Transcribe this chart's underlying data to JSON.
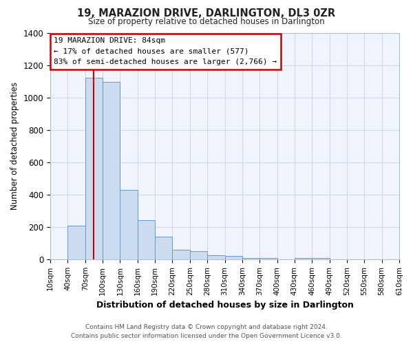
{
  "title": "19, MARAZION DRIVE, DARLINGTON, DL3 0ZR",
  "subtitle": "Size of property relative to detached houses in Darlington",
  "xlabel": "Distribution of detached houses by size in Darlington",
  "ylabel": "Number of detached properties",
  "bar_color": "#ccdcf0",
  "bar_edge_color": "#6699cc",
  "bg_color": "#ffffff",
  "plot_bg_color": "#f0f4fc",
  "annotation_box_color": "#ffffff",
  "annotation_box_edge": "#cc0000",
  "red_line_x": 84,
  "annotation_line1": "19 MARAZION DRIVE: 84sqm",
  "annotation_line2": "← 17% of detached houses are smaller (577)",
  "annotation_line3": "83% of semi-detached houses are larger (2,766) →",
  "footnote1": "Contains HM Land Registry data © Crown copyright and database right 2024.",
  "footnote2": "Contains public sector information licensed under the Open Government Licence v3.0.",
  "bin_edges": [
    10,
    40,
    70,
    100,
    130,
    160,
    190,
    220,
    250,
    280,
    310,
    340,
    370,
    400,
    430,
    460,
    490,
    520,
    550,
    580,
    610
  ],
  "bin_counts": [
    0,
    210,
    1120,
    1095,
    430,
    240,
    140,
    60,
    50,
    25,
    20,
    10,
    10,
    0,
    10,
    10,
    0,
    0,
    0,
    0
  ],
  "ylim": [
    0,
    1400
  ],
  "yticks": [
    0,
    200,
    400,
    600,
    800,
    1000,
    1200,
    1400
  ],
  "grid_color": "#d0d8ec"
}
